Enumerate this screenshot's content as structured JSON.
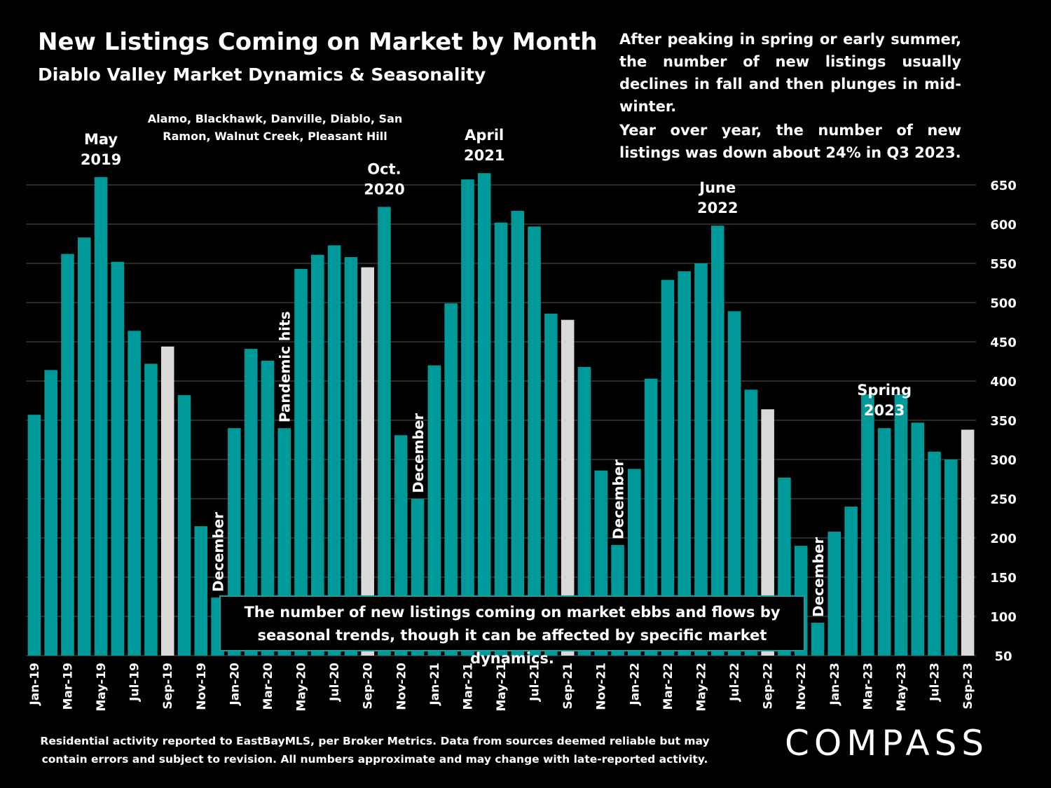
{
  "title": "New Listings Coming on Market by Month",
  "subtitle": "Diablo Valley Market Dynamics & Seasonality",
  "towns": "Alamo, Blackhawk, Danville, Diablo, San Ramon, Walnut Creek, Pleasant Hill",
  "commentary": [
    "After peaking in spring or early summer, the number of new listings usually declines in fall and then plunges in mid-winter.",
    "Year over year, the number of new listings was down about 24% in Q3 2023."
  ],
  "callout": "The number of new listings coming on market ebbs and flows by seasonal trends, though it can be affected by specific market dynamics.",
  "footer": "Residential activity reported to EastBayMLS, per Broker Metrics. Data from sources deemed reliable but may contain errors and subject to revision. All numbers approximate and may change with late-reported activity.",
  "logo": "COMPASS",
  "colors": {
    "bar": "#009999",
    "highlight": "#d9d9d9",
    "background": "#000000",
    "grid": "#555555"
  },
  "chart_data": {
    "type": "bar",
    "ylim": [
      50,
      650
    ],
    "yticks": [
      50,
      100,
      150,
      200,
      250,
      300,
      350,
      400,
      450,
      500,
      550,
      600,
      650
    ],
    "grid": true,
    "categories": [
      "Jan-19",
      "Feb-19",
      "Mar-19",
      "Apr-19",
      "May-19",
      "Jun-19",
      "Jul-19",
      "Aug-19",
      "Sep-19",
      "Oct-19",
      "Nov-19",
      "Dec-19",
      "Jan-20",
      "Feb-20",
      "Mar-20",
      "Apr-20",
      "May-20",
      "Jun-20",
      "Jul-20",
      "Aug-20",
      "Sep-20",
      "Oct-20",
      "Nov-20",
      "Dec-20",
      "Jan-21",
      "Feb-21",
      "Mar-21",
      "Apr-21",
      "May-21",
      "Jun-21",
      "Jul-21",
      "Aug-21",
      "Sep-21",
      "Oct-21",
      "Nov-21",
      "Dec-21",
      "Jan-22",
      "Feb-22",
      "Mar-22",
      "Apr-22",
      "May-22",
      "Jun-22",
      "Jul-22",
      "Aug-22",
      "Sep-22",
      "Oct-22",
      "Nov-22",
      "Dec-22",
      "Jan-23",
      "Feb-23",
      "Mar-23",
      "Apr-23",
      "May-23",
      "Jun-23",
      "Jul-23",
      "Aug-23",
      "Sep-23"
    ],
    "x_tick_labels": [
      "Jan-19",
      "",
      "Mar-19",
      "",
      "May-19",
      "",
      "Jul-19",
      "",
      "Sep-19",
      "",
      "Nov-19",
      "",
      "Jan-20",
      "",
      "Mar-20",
      "",
      "May-20",
      "",
      "Jul-20",
      "",
      "Sep-20",
      "",
      "Nov-20",
      "",
      "Jan-21",
      "",
      "Mar-21",
      "",
      "May-21",
      "",
      "Jul-21",
      "",
      "Sep-21",
      "",
      "Nov-21",
      "",
      "Jan-22",
      "",
      "Mar-22",
      "",
      "May-22",
      "",
      "Jul-22",
      "",
      "Sep-22",
      "",
      "Nov-22",
      "",
      "Jan-23",
      "",
      "Mar-23",
      "",
      "May-23",
      "",
      "Jul-23",
      "",
      "Sep-23"
    ],
    "values": [
      357,
      414,
      562,
      583,
      660,
      552,
      464,
      422,
      444,
      382,
      215,
      124,
      340,
      441,
      426,
      340,
      543,
      561,
      573,
      558,
      545,
      622,
      331,
      250,
      420,
      499,
      657,
      665,
      602,
      617,
      597,
      486,
      478,
      418,
      286,
      191,
      288,
      403,
      529,
      540,
      550,
      598,
      489,
      389,
      364,
      277,
      190,
      92,
      208,
      240,
      383,
      340,
      383,
      347,
      310,
      300,
      338
    ],
    "highlighted": [
      "Sep-19",
      "Sep-20",
      "Sep-21",
      "Sep-22",
      "Sep-23"
    ],
    "annotations": [
      {
        "text": [
          "May",
          "2019"
        ],
        "index": 4,
        "style": "above"
      },
      {
        "text": [
          "December"
        ],
        "index": 11,
        "style": "vertical"
      },
      {
        "text": [
          "Pandemic hits"
        ],
        "index": 15,
        "style": "vertical"
      },
      {
        "text": [
          "Oct.",
          "2020"
        ],
        "index": 21,
        "style": "above"
      },
      {
        "text": [
          "December"
        ],
        "index": 23,
        "style": "vertical"
      },
      {
        "text": [
          "April",
          "2021"
        ],
        "index": 27,
        "style": "above"
      },
      {
        "text": [
          "December"
        ],
        "index": 35,
        "style": "vertical"
      },
      {
        "text": [
          "June",
          "2022"
        ],
        "index": 41,
        "style": "above"
      },
      {
        "text": [
          "December"
        ],
        "index": 47,
        "style": "vertical"
      },
      {
        "text": [
          "Spring",
          "2023"
        ],
        "index": 51,
        "style": "above"
      }
    ]
  }
}
